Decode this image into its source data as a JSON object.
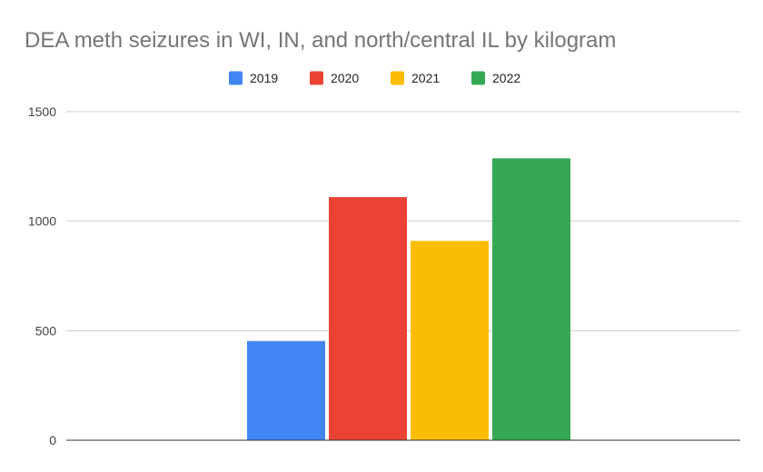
{
  "chart_data": {
    "type": "bar",
    "title": "DEA meth seizures in WI, IN, and north/central IL by kilogram",
    "categories": [
      ""
    ],
    "series": [
      {
        "name": "2019",
        "values": [
          453
        ],
        "color": "#4285f4"
      },
      {
        "name": "2020",
        "values": [
          1110
        ],
        "color": "#ea4335"
      },
      {
        "name": "2021",
        "values": [
          910
        ],
        "color": "#fbbc04"
      },
      {
        "name": "2022",
        "values": [
          1287
        ],
        "color": "#34a853"
      }
    ],
    "xlabel": "",
    "ylabel": "",
    "ylim": [
      0,
      1500
    ],
    "yticks": [
      0,
      500,
      1000,
      1500
    ],
    "grid": true,
    "legend": "top-center"
  }
}
